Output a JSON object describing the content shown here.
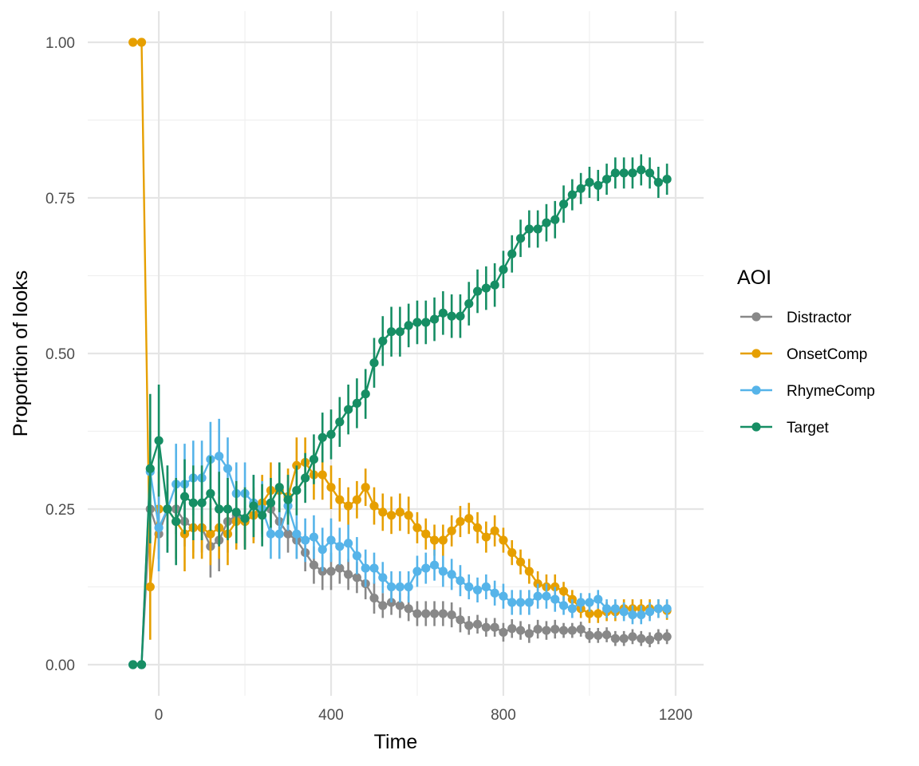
{
  "chart_data": {
    "type": "line",
    "xlabel": "Time",
    "ylabel": "Proportion of looks",
    "xlim": [
      -165,
      1265
    ],
    "ylim": [
      -0.05,
      1.05
    ],
    "x_ticks": [
      0,
      400,
      800,
      1200
    ],
    "x_tick_labels": [
      "0",
      "400",
      "800",
      "1200"
    ],
    "y_ticks": [
      0,
      0.25,
      0.5,
      0.75,
      1
    ],
    "y_tick_labels": [
      "0.00",
      "0.25",
      "0.50",
      "0.75",
      "1.00"
    ],
    "grid": true,
    "legend": {
      "title": "AOI",
      "position": "right"
    },
    "x": [
      -60,
      -40,
      -20,
      0,
      20,
      40,
      60,
      80,
      100,
      120,
      140,
      160,
      180,
      200,
      220,
      240,
      260,
      280,
      300,
      320,
      340,
      360,
      380,
      400,
      420,
      440,
      460,
      480,
      500,
      520,
      540,
      560,
      580,
      600,
      620,
      640,
      660,
      680,
      700,
      720,
      740,
      760,
      780,
      800,
      820,
      840,
      860,
      880,
      900,
      920,
      940,
      960,
      980,
      1000,
      1020,
      1040,
      1060,
      1080,
      1100,
      1120,
      1140,
      1160,
      1180
    ],
    "series": [
      {
        "name": "Distractor",
        "color": "#888888",
        "values": [
          0,
          0,
          0.25,
          0.21,
          0.25,
          0.25,
          0.23,
          0.22,
          0.22,
          0.19,
          0.2,
          0.23,
          0.24,
          0.23,
          0.24,
          0.25,
          0.25,
          0.23,
          0.21,
          0.2,
          0.18,
          0.16,
          0.15,
          0.15,
          0.155,
          0.145,
          0.14,
          0.13,
          0.107,
          0.095,
          0.1,
          0.095,
          0.09,
          0.082,
          0.082,
          0.082,
          0.082,
          0.08,
          0.072,
          0.063,
          0.065,
          0.06,
          0.06,
          0.052,
          0.058,
          0.055,
          0.05,
          0.057,
          0.055,
          0.057,
          0.055,
          0.055,
          0.057,
          0.047,
          0.047,
          0.048,
          0.042,
          0.042,
          0.045,
          0.042,
          0.04,
          0.045,
          0.045
        ],
        "errors": [
          0,
          0,
          0.04,
          0.04,
          0.04,
          0.04,
          0.04,
          0.04,
          0.04,
          0.05,
          0.05,
          0.05,
          0.04,
          0.04,
          0.04,
          0.04,
          0.035,
          0.03,
          0.03,
          0.03,
          0.03,
          0.03,
          0.03,
          0.03,
          0.025,
          0.025,
          0.025,
          0.025,
          0.025,
          0.02,
          0.02,
          0.02,
          0.02,
          0.02,
          0.02,
          0.02,
          0.02,
          0.02,
          0.02,
          0.015,
          0.015,
          0.015,
          0.015,
          0.015,
          0.015,
          0.015,
          0.015,
          0.015,
          0.015,
          0.015,
          0.012,
          0.012,
          0.012,
          0.012,
          0.012,
          0.012,
          0.012,
          0.012,
          0.012,
          0.012,
          0.012,
          0.012,
          0.012
        ]
      },
      {
        "name": "OnsetComp",
        "color": "#E69F00",
        "values": [
          1,
          1,
          0.125,
          0.25,
          0.25,
          0.23,
          0.21,
          0.22,
          0.22,
          0.21,
          0.22,
          0.21,
          0.23,
          0.23,
          0.24,
          0.26,
          0.28,
          0.28,
          0.27,
          0.32,
          0.325,
          0.305,
          0.305,
          0.285,
          0.265,
          0.255,
          0.265,
          0.285,
          0.255,
          0.245,
          0.24,
          0.245,
          0.24,
          0.22,
          0.21,
          0.2,
          0.2,
          0.215,
          0.23,
          0.235,
          0.22,
          0.205,
          0.215,
          0.2,
          0.18,
          0.165,
          0.15,
          0.13,
          0.125,
          0.125,
          0.118,
          0.105,
          0.09,
          0.082,
          0.082,
          0.085,
          0.085,
          0.09,
          0.09,
          0.09,
          0.09,
          0.09,
          0.087
        ],
        "errors": [
          0,
          0,
          0.085,
          0.06,
          0.06,
          0.06,
          0.06,
          0.05,
          0.05,
          0.05,
          0.05,
          0.05,
          0.045,
          0.045,
          0.045,
          0.045,
          0.045,
          0.045,
          0.045,
          0.045,
          0.04,
          0.04,
          0.04,
          0.035,
          0.035,
          0.03,
          0.03,
          0.03,
          0.03,
          0.03,
          0.03,
          0.03,
          0.03,
          0.025,
          0.025,
          0.025,
          0.025,
          0.025,
          0.025,
          0.025,
          0.025,
          0.025,
          0.025,
          0.02,
          0.02,
          0.02,
          0.02,
          0.02,
          0.02,
          0.02,
          0.015,
          0.015,
          0.015,
          0.015,
          0.015,
          0.015,
          0.015,
          0.015,
          0.015,
          0.015,
          0.015,
          0.015,
          0.015
        ]
      },
      {
        "name": "RhymeComp",
        "color": "#56B4E9",
        "values": [
          0,
          0,
          0.31,
          0.22,
          0.25,
          0.29,
          0.29,
          0.3,
          0.3,
          0.33,
          0.335,
          0.315,
          0.275,
          0.275,
          0.26,
          0.25,
          0.21,
          0.21,
          0.255,
          0.21,
          0.2,
          0.205,
          0.185,
          0.2,
          0.19,
          0.195,
          0.175,
          0.155,
          0.155,
          0.14,
          0.125,
          0.125,
          0.125,
          0.15,
          0.155,
          0.16,
          0.15,
          0.145,
          0.135,
          0.125,
          0.12,
          0.125,
          0.115,
          0.11,
          0.1,
          0.1,
          0.1,
          0.11,
          0.11,
          0.105,
          0.095,
          0.09,
          0.1,
          0.1,
          0.105,
          0.09,
          0.09,
          0.085,
          0.08,
          0.08,
          0.085,
          0.09,
          0.09
        ],
        "errors": [
          0,
          0,
          0.065,
          0.07,
          0.07,
          0.065,
          0.065,
          0.06,
          0.06,
          0.06,
          0.06,
          0.05,
          0.05,
          0.05,
          0.045,
          0.045,
          0.04,
          0.04,
          0.04,
          0.04,
          0.035,
          0.035,
          0.035,
          0.035,
          0.03,
          0.03,
          0.03,
          0.03,
          0.025,
          0.025,
          0.025,
          0.025,
          0.025,
          0.025,
          0.025,
          0.025,
          0.025,
          0.025,
          0.025,
          0.02,
          0.02,
          0.02,
          0.02,
          0.02,
          0.02,
          0.02,
          0.02,
          0.02,
          0.02,
          0.02,
          0.015,
          0.015,
          0.015,
          0.015,
          0.015,
          0.015,
          0.015,
          0.015,
          0.015,
          0.015,
          0.015,
          0.015,
          0.015
        ]
      },
      {
        "name": "Target",
        "color": "#168E64",
        "values": [
          0,
          0,
          0.315,
          0.36,
          0.25,
          0.23,
          0.27,
          0.26,
          0.26,
          0.275,
          0.25,
          0.25,
          0.245,
          0.235,
          0.255,
          0.24,
          0.26,
          0.285,
          0.265,
          0.28,
          0.3,
          0.33,
          0.365,
          0.37,
          0.39,
          0.41,
          0.42,
          0.435,
          0.485,
          0.52,
          0.535,
          0.535,
          0.545,
          0.55,
          0.55,
          0.555,
          0.565,
          0.56,
          0.56,
          0.58,
          0.6,
          0.605,
          0.61,
          0.635,
          0.66,
          0.685,
          0.7,
          0.7,
          0.71,
          0.715,
          0.74,
          0.755,
          0.765,
          0.775,
          0.77,
          0.78,
          0.79,
          0.79,
          0.79,
          0.795,
          0.79,
          0.775,
          0.78
        ],
        "errors": [
          0,
          0,
          0.12,
          0.09,
          0.07,
          0.07,
          0.06,
          0.06,
          0.06,
          0.06,
          0.06,
          0.05,
          0.05,
          0.05,
          0.05,
          0.05,
          0.04,
          0.04,
          0.04,
          0.04,
          0.04,
          0.04,
          0.04,
          0.04,
          0.04,
          0.04,
          0.04,
          0.04,
          0.04,
          0.04,
          0.04,
          0.04,
          0.035,
          0.035,
          0.035,
          0.035,
          0.035,
          0.035,
          0.035,
          0.035,
          0.035,
          0.035,
          0.035,
          0.03,
          0.03,
          0.03,
          0.03,
          0.03,
          0.03,
          0.03,
          0.03,
          0.025,
          0.025,
          0.025,
          0.025,
          0.025,
          0.025,
          0.025,
          0.025,
          0.025,
          0.025,
          0.025,
          0.025
        ]
      }
    ]
  }
}
